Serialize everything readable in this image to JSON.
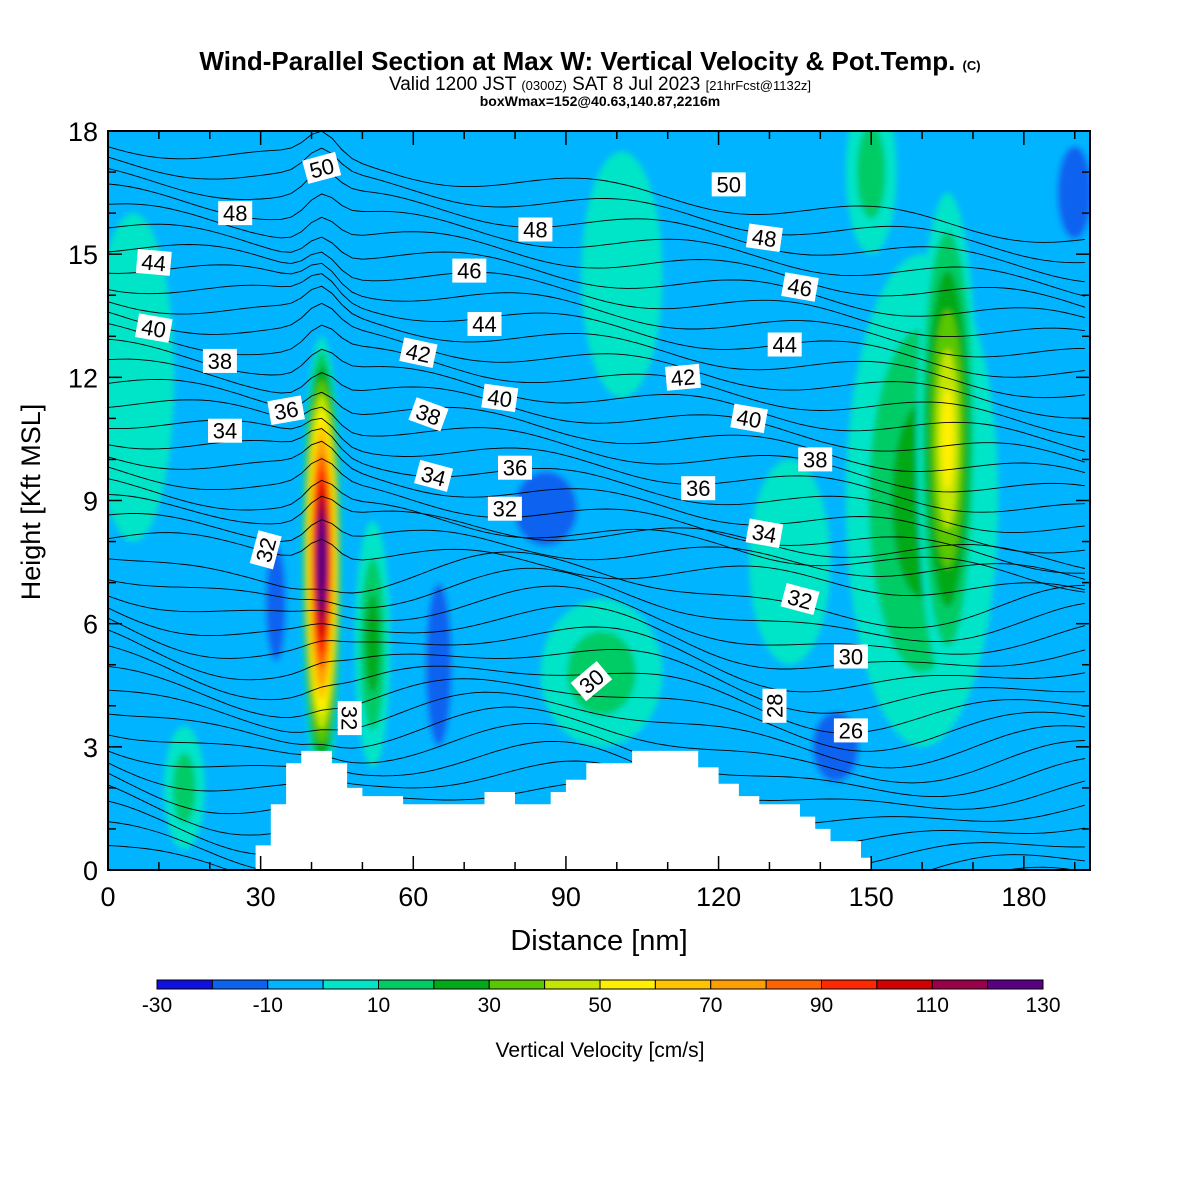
{
  "chart_data": {
    "type": "heatmap",
    "title": "Wind-Parallel Section at Max W: Vertical Velocity & Pot.Temp.",
    "title_mark": "(C)",
    "subtitle_main": "Valid 1200 JST",
    "subtitle_z": "(0300Z)",
    "subtitle_date": "SAT 8 Jul 2023",
    "subtitle_fcst": "[21hrFcst@1132z]",
    "subtitle2": "boxWmax=152@40.63,140.87,2216m",
    "xlabel": "Distance [nm]",
    "ylabel": "Height [Kft MSL]",
    "xlim": [
      0,
      193
    ],
    "ylim": [
      0,
      18
    ],
    "x_ticks": [
      0,
      30,
      60,
      90,
      120,
      150,
      180
    ],
    "y_ticks": [
      0,
      3,
      6,
      9,
      12,
      15,
      18
    ],
    "colorbar": {
      "label": "Vertical Velocity [cm/s]",
      "levels": [
        -30,
        -20,
        -10,
        0,
        10,
        20,
        30,
        40,
        50,
        60,
        70,
        80,
        90,
        100,
        110,
        120,
        130
      ],
      "tick_labels": [
        -30,
        -10,
        10,
        30,
        50,
        70,
        90,
        110,
        130
      ],
      "colors": [
        "#1010e0",
        "#0a64f0",
        "#00b4ff",
        "#00e4c8",
        "#00cc66",
        "#00aa18",
        "#5ac800",
        "#c4e600",
        "#fff000",
        "#ffc400",
        "#ff9e00",
        "#ff6400",
        "#ff2800",
        "#d20000",
        "#9a004a",
        "#5a0082"
      ]
    },
    "theta_labels": [
      {
        "value": 50,
        "x": 42,
        "y": 17.1,
        "angle": -15
      },
      {
        "value": 48,
        "x": 25,
        "y": 16.0,
        "angle": 0
      },
      {
        "value": 44,
        "x": 9,
        "y": 14.8,
        "angle": 5
      },
      {
        "value": 40,
        "x": 9,
        "y": 13.2,
        "angle": 10
      },
      {
        "value": 38,
        "x": 22,
        "y": 12.4,
        "angle": 0
      },
      {
        "value": 34,
        "x": 23,
        "y": 10.7,
        "angle": 0
      },
      {
        "value": 36,
        "x": 35,
        "y": 11.2,
        "angle": -10
      },
      {
        "value": 32,
        "x": 31,
        "y": 7.8,
        "angle": -75
      },
      {
        "value": 32,
        "x": 47.5,
        "y": 3.7,
        "angle": 90
      },
      {
        "value": 42,
        "x": 61,
        "y": 12.6,
        "angle": 12
      },
      {
        "value": 38,
        "x": 63,
        "y": 11.1,
        "angle": 20
      },
      {
        "value": 34,
        "x": 64,
        "y": 9.6,
        "angle": 15
      },
      {
        "value": 46,
        "x": 71,
        "y": 14.6,
        "angle": 0
      },
      {
        "value": 44,
        "x": 74,
        "y": 13.3,
        "angle": 0
      },
      {
        "value": 40,
        "x": 77,
        "y": 11.5,
        "angle": 8
      },
      {
        "value": 36,
        "x": 80,
        "y": 9.8,
        "angle": 0
      },
      {
        "value": 32,
        "x": 78,
        "y": 8.8,
        "angle": 0
      },
      {
        "value": 48,
        "x": 84,
        "y": 15.6,
        "angle": 0
      },
      {
        "value": 30,
        "x": 95,
        "y": 4.6,
        "angle": -40
      },
      {
        "value": 50,
        "x": 122,
        "y": 16.7,
        "angle": 0
      },
      {
        "value": 42,
        "x": 113,
        "y": 12.0,
        "angle": -5
      },
      {
        "value": 36,
        "x": 116,
        "y": 9.3,
        "angle": 0
      },
      {
        "value": 48,
        "x": 129,
        "y": 15.4,
        "angle": 8
      },
      {
        "value": 46,
        "x": 136,
        "y": 14.2,
        "angle": 10
      },
      {
        "value": 44,
        "x": 133,
        "y": 12.8,
        "angle": 0
      },
      {
        "value": 40,
        "x": 126,
        "y": 11.0,
        "angle": 10
      },
      {
        "value": 38,
        "x": 139,
        "y": 10.0,
        "angle": 0
      },
      {
        "value": 34,
        "x": 129,
        "y": 8.2,
        "angle": 10
      },
      {
        "value": 32,
        "x": 136,
        "y": 6.6,
        "angle": 15
      },
      {
        "value": 30,
        "x": 146,
        "y": 5.2,
        "angle": 0
      },
      {
        "value": 28,
        "x": 131,
        "y": 4.0,
        "angle": -90
      },
      {
        "value": 26,
        "x": 146,
        "y": 3.4,
        "angle": 0
      }
    ],
    "w_features": [
      {
        "x": 42,
        "y": 7.5,
        "rx": 4.0,
        "ry": 5.5,
        "w": 152
      },
      {
        "x": 52,
        "y": 5.5,
        "rx": 3.5,
        "ry": 3.0,
        "w": 28
      },
      {
        "x": 33,
        "y": 6.5,
        "rx": 3.5,
        "ry": 2.5,
        "w": -22
      },
      {
        "x": 11,
        "y": 6.0,
        "rx": 5.0,
        "ry": 2.5,
        "w": -12
      },
      {
        "x": 65,
        "y": 5.0,
        "rx": 4.5,
        "ry": 3.5,
        "w": -18
      },
      {
        "x": 86,
        "y": 8.8,
        "rx": 11,
        "ry": 1.6,
        "w": -20
      },
      {
        "x": 97,
        "y": 4.8,
        "rx": 12,
        "ry": 1.8,
        "w": 18
      },
      {
        "x": 160,
        "y": 9.0,
        "rx": 15,
        "ry": 6.0,
        "w": 30
      },
      {
        "x": 165,
        "y": 10.5,
        "rx": 6,
        "ry": 6.0,
        "w": 55
      },
      {
        "x": 143,
        "y": 3.0,
        "rx": 8,
        "ry": 1.5,
        "w": -20
      },
      {
        "x": 134,
        "y": 7.5,
        "rx": 8,
        "ry": 2.5,
        "w": 12
      },
      {
        "x": 190,
        "y": 16.5,
        "rx": 6,
        "ry": 2.0,
        "w": -15
      },
      {
        "x": 15,
        "y": 2.0,
        "rx": 4,
        "ry": 1.5,
        "w": 15
      },
      {
        "x": 150,
        "y": 17.0,
        "rx": 5,
        "ry": 2.0,
        "w": 15
      },
      {
        "x": 5,
        "y": 12.0,
        "rx": 8,
        "ry": 4.0,
        "w": 8
      },
      {
        "x": 101,
        "y": 14.5,
        "rx": 8,
        "ry": 3.0,
        "w": 6
      }
    ],
    "terrain": [
      [
        29,
        0
      ],
      [
        29,
        0.6
      ],
      [
        32,
        0.6
      ],
      [
        32,
        1.6
      ],
      [
        35,
        1.6
      ],
      [
        35,
        2.6
      ],
      [
        38,
        2.6
      ],
      [
        38,
        2.9
      ],
      [
        44,
        2.9
      ],
      [
        44,
        2.6
      ],
      [
        47,
        2.6
      ],
      [
        47,
        2.0
      ],
      [
        50,
        2.0
      ],
      [
        50,
        1.8
      ],
      [
        58,
        1.8
      ],
      [
        58,
        1.6
      ],
      [
        74,
        1.6
      ],
      [
        74,
        1.9
      ],
      [
        80,
        1.9
      ],
      [
        80,
        1.6
      ],
      [
        87,
        1.6
      ],
      [
        87,
        1.9
      ],
      [
        90,
        1.9
      ],
      [
        90,
        2.2
      ],
      [
        94,
        2.2
      ],
      [
        94,
        2.6
      ],
      [
        103,
        2.6
      ],
      [
        103,
        2.9
      ],
      [
        116,
        2.9
      ],
      [
        116,
        2.5
      ],
      [
        120,
        2.5
      ],
      [
        120,
        2.1
      ],
      [
        124,
        2.1
      ],
      [
        124,
        1.8
      ],
      [
        128,
        1.8
      ],
      [
        128,
        1.6
      ],
      [
        136,
        1.6
      ],
      [
        136,
        1.3
      ],
      [
        139,
        1.3
      ],
      [
        139,
        1.0
      ],
      [
        142,
        1.0
      ],
      [
        142,
        0.7
      ],
      [
        148,
        0.7
      ],
      [
        148,
        0.3
      ],
      [
        150,
        0.3
      ],
      [
        150,
        0
      ]
    ]
  }
}
